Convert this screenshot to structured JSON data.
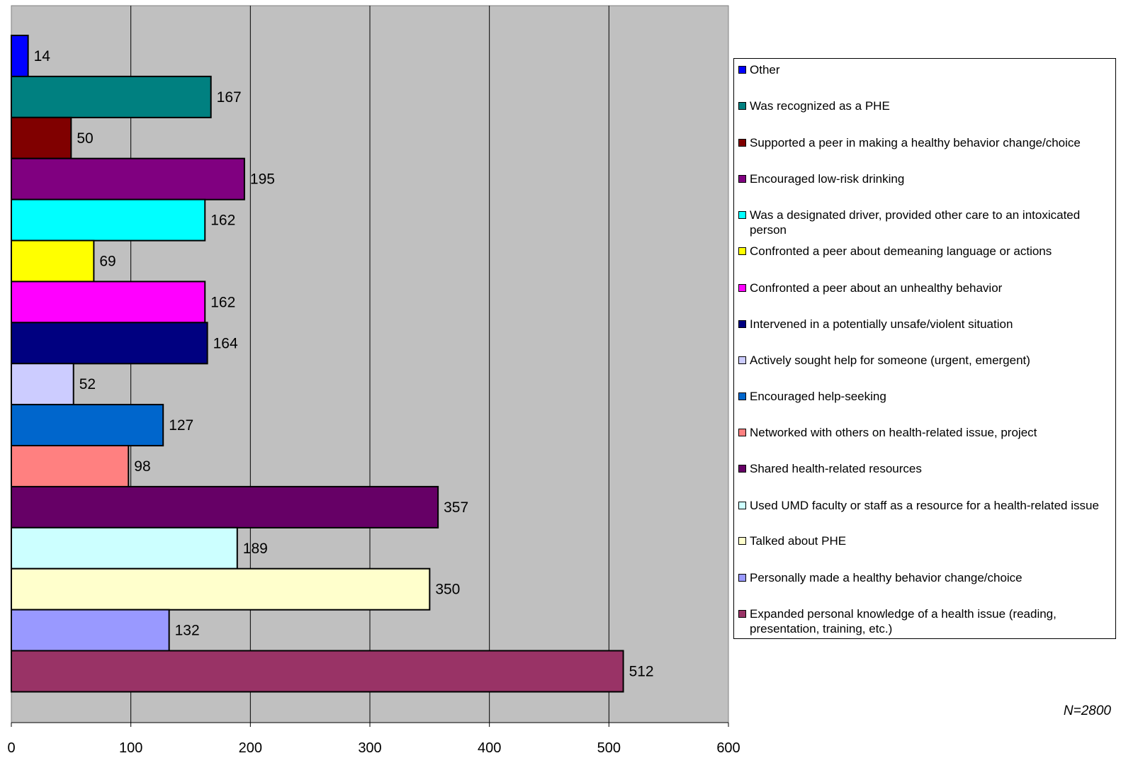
{
  "chart_data": {
    "type": "bar",
    "orientation": "horizontal",
    "xlim": [
      0,
      600
    ],
    "x_ticks": [
      "0",
      "100",
      "200",
      "300",
      "400",
      "500",
      "600"
    ],
    "grid": true,
    "legend_position": "right",
    "categories": [
      "Other",
      "Was recognized as a PHE",
      "Supported a peer in making a healthy behavior change/choice",
      "Encouraged low-risk drinking",
      "Was a designated driver, provided other care to an intoxicated person",
      "Confronted a peer about demeaning language or actions",
      "Confronted a peer about an unhealthy behavior",
      "Intervened in a potentially unsafe/violent situation",
      "Actively sought help for someone (urgent, emergent)",
      "Encouraged help-seeking",
      "Networked with others on health-related issue, project",
      "Shared health-related resources",
      "Used UMD faculty or staff as a resource for a health-related issue",
      "Talked about PHE",
      "Personally made a healthy behavior change/choice",
      "Expanded personal knowledge of a health issue (reading, presentation, training, etc.)"
    ],
    "values": [
      14,
      167,
      50,
      195,
      162,
      69,
      162,
      164,
      52,
      127,
      98,
      357,
      189,
      350,
      132,
      512
    ],
    "colors": [
      "#0000ff",
      "#008080",
      "#800000",
      "#800080",
      "#00ffff",
      "#ffff00",
      "#ff00ff",
      "#000080",
      "#ccccff",
      "#0066cc",
      "#ff8080",
      "#660066",
      "#ccffff",
      "#ffffcc",
      "#9999ff",
      "#993366"
    ],
    "plot_background": "#c0c0c0",
    "note": "N=2800"
  }
}
